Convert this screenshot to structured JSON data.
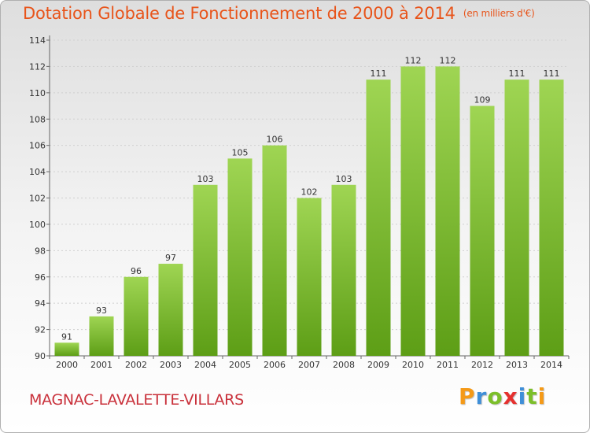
{
  "chart_data": {
    "type": "bar",
    "title": "Dotation Globale de Fonctionnement de 2000 à 2014",
    "subtitle": "(en milliers d'€)",
    "categories": [
      "2000",
      "2001",
      "2002",
      "2003",
      "2004",
      "2005",
      "2006",
      "2007",
      "2008",
      "2009",
      "2010",
      "2011",
      "2012",
      "2013",
      "2014"
    ],
    "values": [
      91,
      93,
      96,
      97,
      103,
      105,
      106,
      102,
      103,
      111,
      112,
      112,
      109,
      111,
      111
    ],
    "ylim": [
      90,
      114
    ],
    "yticks": [
      90,
      92,
      94,
      96,
      98,
      100,
      102,
      104,
      106,
      108,
      110,
      112,
      114
    ],
    "grid": true,
    "bar_color_top": "#9fd553",
    "bar_color_bottom": "#5d9e16",
    "title_color": "#e8541a"
  },
  "commune": "MAGNAC-LAVALETTE-VILLARS",
  "logo": {
    "letters": [
      "P",
      "r",
      "o",
      "x",
      "i",
      "t",
      "i"
    ],
    "colors": [
      "#f59a17",
      "#3f8fd8",
      "#7cbf2a",
      "#e5312f",
      "#3f8fd8",
      "#7cbf2a",
      "#f59a17"
    ]
  }
}
